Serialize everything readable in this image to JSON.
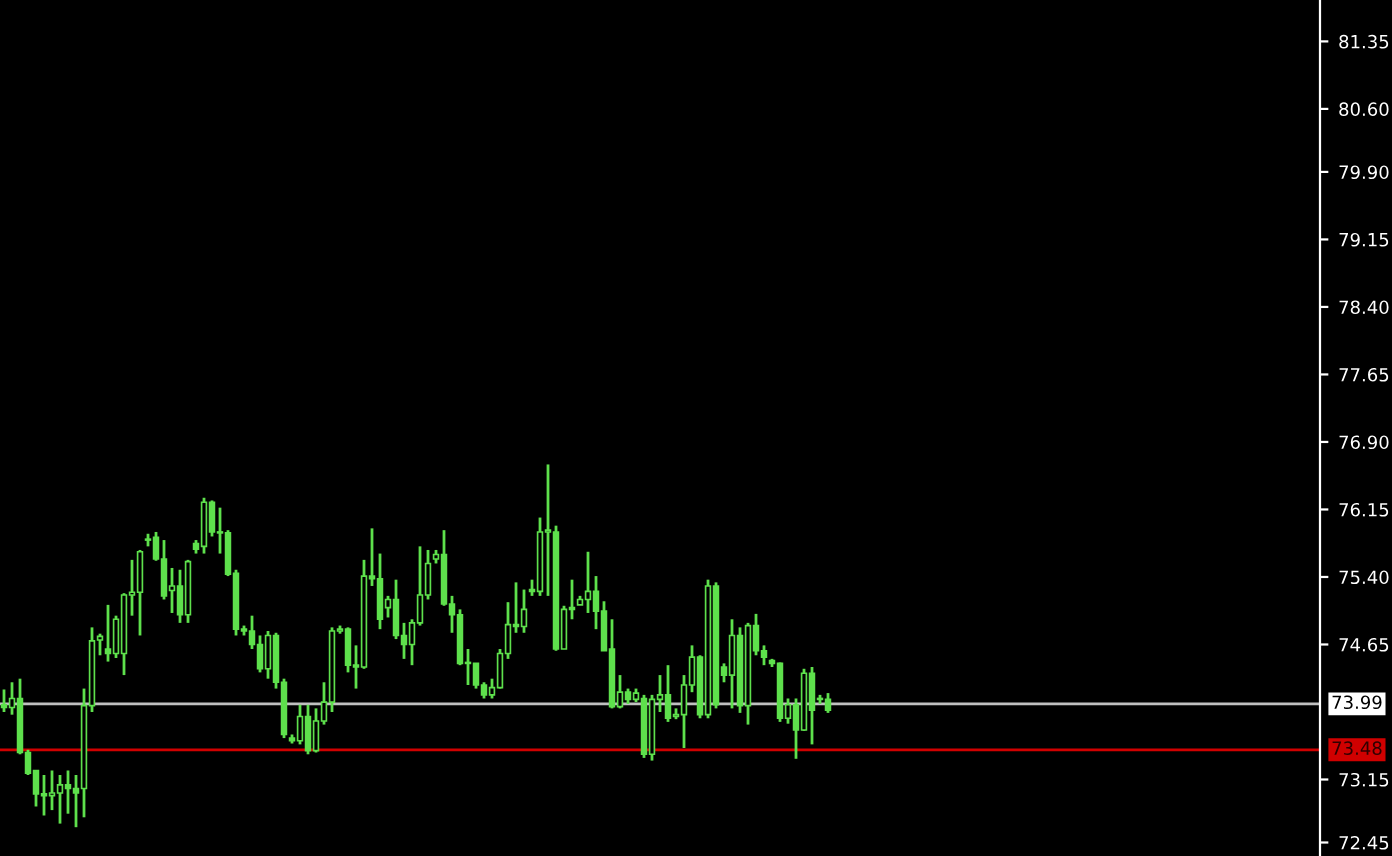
{
  "chart_data": {
    "type": "candlestick",
    "color": "#5ee04c",
    "categories": [
      null,
      null,
      null,
      null,
      null,
      null,
      null,
      null,
      null,
      null,
      null,
      null,
      null,
      null,
      null,
      null,
      null,
      null,
      null,
      null,
      null,
      null,
      null,
      null,
      null,
      null,
      null,
      null,
      null,
      null,
      null,
      null,
      null,
      null,
      null,
      null,
      null,
      null,
      null,
      null,
      null,
      null,
      null,
      null,
      null,
      null,
      null,
      null,
      null,
      null,
      null,
      null,
      null,
      null,
      null,
      null,
      null,
      null,
      null,
      null,
      null,
      null,
      null,
      null,
      null,
      null,
      null,
      null,
      null,
      null,
      null,
      null,
      null,
      null,
      null,
      null,
      null,
      null,
      null,
      null,
      null,
      null,
      null,
      null,
      null,
      null,
      null,
      null,
      null,
      null,
      null,
      null,
      null,
      null,
      null,
      null,
      null,
      null,
      null,
      null,
      null,
      null,
      null,
      null,
      null,
      null,
      null,
      null,
      null,
      null,
      null,
      null,
      null,
      null,
      null,
      null,
      null,
      null,
      null,
      null,
      null,
      null,
      null,
      null,
      null,
      null,
      null,
      null,
      null,
      null,
      null,
      null,
      null,
      null,
      null,
      null,
      null,
      null,
      null,
      null,
      null,
      null,
      null,
      null,
      null,
      null,
      null,
      null,
      null,
      null,
      null,
      null,
      null,
      null,
      null,
      null,
      null,
      null,
      null,
      null,
      null,
      null,
      null,
      null,
      null
    ],
    "ohlc": [
      [
        73.98,
        74.15,
        73.9,
        73.95
      ],
      [
        73.95,
        74.23,
        73.87,
        74.05
      ],
      [
        74.05,
        74.27,
        73.43,
        73.45
      ],
      [
        73.45,
        73.48,
        73.2,
        73.22
      ],
      [
        73.25,
        73.25,
        72.85,
        72.99
      ],
      [
        72.99,
        73.2,
        72.75,
        72.97
      ],
      [
        72.97,
        73.25,
        72.81,
        73.0
      ],
      [
        73.0,
        73.2,
        72.66,
        73.09
      ],
      [
        73.09,
        73.25,
        72.77,
        73.05
      ],
      [
        73.05,
        73.2,
        72.62,
        73.0
      ],
      [
        73.05,
        74.16,
        72.73,
        73.97
      ],
      [
        73.97,
        74.84,
        73.9,
        74.69
      ],
      [
        74.7,
        74.77,
        74.53,
        74.74
      ],
      [
        74.6,
        75.09,
        74.46,
        74.55
      ],
      [
        74.55,
        74.97,
        74.5,
        74.93
      ],
      [
        74.55,
        75.22,
        74.31,
        75.2
      ],
      [
        75.2,
        75.59,
        74.97,
        75.23
      ],
      [
        75.23,
        75.7,
        74.75,
        75.68
      ],
      [
        75.82,
        75.88,
        75.74,
        75.81
      ],
      [
        75.84,
        75.9,
        75.58,
        75.6
      ],
      [
        75.6,
        75.81,
        75.15,
        75.19
      ],
      [
        75.25,
        75.5,
        75.0,
        75.3
      ],
      [
        75.3,
        75.48,
        74.89,
        74.98
      ],
      [
        74.98,
        75.59,
        74.89,
        75.57
      ],
      [
        75.77,
        75.81,
        75.66,
        75.71
      ],
      [
        75.74,
        76.28,
        75.66,
        76.23
      ],
      [
        76.23,
        76.25,
        75.85,
        75.9
      ],
      [
        75.9,
        76.17,
        75.66,
        75.89
      ],
      [
        75.89,
        75.92,
        75.41,
        75.43
      ],
      [
        75.44,
        75.48,
        74.75,
        74.82
      ],
      [
        74.82,
        74.86,
        74.75,
        74.8
      ],
      [
        74.8,
        74.97,
        74.6,
        74.65
      ],
      [
        74.65,
        74.75,
        74.34,
        74.38
      ],
      [
        74.38,
        74.8,
        74.27,
        74.75
      ],
      [
        74.75,
        74.78,
        74.16,
        74.23
      ],
      [
        74.23,
        74.27,
        73.61,
        73.65
      ],
      [
        73.61,
        73.65,
        73.55,
        73.58
      ],
      [
        73.58,
        73.98,
        73.54,
        73.85
      ],
      [
        73.85,
        73.98,
        73.43,
        73.47
      ],
      [
        73.47,
        73.94,
        73.45,
        73.8
      ],
      [
        73.8,
        74.23,
        73.76,
        74.01
      ],
      [
        74.01,
        74.84,
        73.9,
        74.8
      ],
      [
        74.8,
        74.86,
        74.77,
        74.82
      ],
      [
        74.82,
        74.84,
        74.34,
        74.42
      ],
      [
        74.42,
        74.64,
        74.16,
        74.4
      ],
      [
        74.4,
        75.59,
        74.38,
        75.41
      ],
      [
        75.41,
        75.94,
        75.3,
        75.38
      ],
      [
        75.38,
        75.66,
        74.82,
        74.93
      ],
      [
        75.06,
        75.19,
        74.95,
        75.15
      ],
      [
        75.15,
        75.37,
        74.71,
        74.75
      ],
      [
        74.75,
        74.89,
        74.49,
        74.65
      ],
      [
        74.65,
        74.93,
        74.42,
        74.89
      ],
      [
        74.89,
        75.74,
        74.86,
        75.2
      ],
      [
        75.2,
        75.7,
        75.15,
        75.55
      ],
      [
        75.6,
        75.7,
        75.55,
        75.65
      ],
      [
        75.65,
        75.92,
        75.08,
        75.1
      ],
      [
        75.1,
        75.19,
        74.78,
        74.98
      ],
      [
        74.98,
        75.04,
        74.42,
        74.44
      ],
      [
        74.45,
        74.6,
        74.2,
        74.44
      ],
      [
        74.44,
        74.44,
        74.16,
        74.2
      ],
      [
        74.2,
        74.23,
        74.05,
        74.09
      ],
      [
        74.09,
        74.27,
        74.05,
        74.17
      ],
      [
        74.17,
        74.6,
        74.16,
        74.55
      ],
      [
        74.55,
        75.12,
        74.49,
        74.87
      ],
      [
        74.87,
        75.34,
        74.78,
        74.85
      ],
      [
        74.85,
        75.26,
        74.78,
        75.04
      ],
      [
        75.26,
        75.37,
        75.19,
        75.24
      ],
      [
        75.24,
        76.06,
        75.19,
        75.9
      ],
      [
        75.9,
        76.65,
        75.19,
        75.92
      ],
      [
        75.9,
        75.97,
        74.58,
        74.6
      ],
      [
        74.6,
        75.08,
        74.6,
        75.04
      ],
      [
        75.04,
        75.37,
        74.93,
        75.06
      ],
      [
        75.09,
        75.19,
        75.09,
        75.15
      ],
      [
        75.15,
        75.68,
        75.0,
        75.24
      ],
      [
        75.24,
        75.41,
        74.82,
        75.02
      ],
      [
        75.02,
        75.13,
        74.58,
        74.58
      ],
      [
        74.6,
        74.93,
        73.94,
        73.96
      ],
      [
        73.96,
        74.31,
        73.94,
        74.12
      ],
      [
        74.12,
        74.16,
        73.99,
        74.04
      ],
      [
        74.04,
        74.16,
        74.01,
        74.11
      ],
      [
        74.05,
        74.09,
        73.39,
        73.43
      ],
      [
        73.43,
        74.09,
        73.36,
        74.04
      ],
      [
        74.04,
        74.31,
        73.9,
        74.09
      ],
      [
        74.09,
        74.42,
        73.79,
        73.83
      ],
      [
        73.85,
        73.94,
        73.82,
        73.87
      ],
      [
        73.87,
        74.31,
        73.5,
        74.2
      ],
      [
        74.2,
        74.64,
        74.12,
        74.51
      ],
      [
        74.51,
        74.53,
        73.83,
        73.87
      ],
      [
        73.87,
        75.37,
        73.83,
        75.3
      ],
      [
        75.3,
        75.34,
        73.94,
        73.98
      ],
      [
        74.4,
        74.44,
        74.23,
        74.31
      ],
      [
        74.31,
        74.93,
        73.94,
        74.75
      ],
      [
        74.75,
        74.84,
        73.89,
        73.97
      ],
      [
        73.97,
        74.89,
        73.76,
        74.86
      ],
      [
        74.86,
        74.99,
        74.53,
        74.58
      ],
      [
        74.58,
        74.64,
        74.42,
        74.51
      ],
      [
        74.47,
        74.49,
        74.4,
        74.44
      ],
      [
        74.44,
        74.45,
        73.79,
        73.83
      ],
      [
        73.83,
        74.05,
        73.77,
        73.98
      ],
      [
        73.98,
        74.05,
        73.38,
        73.7
      ],
      [
        73.7,
        74.38,
        73.69,
        74.33
      ],
      [
        74.33,
        74.4,
        73.54,
        73.92
      ],
      [
        74.05,
        74.09,
        73.99,
        74.04
      ],
      [
        74.04,
        74.11,
        73.89,
        73.92
      ],
      null,
      null,
      null,
      null,
      null,
      null,
      null,
      null,
      null,
      null,
      null,
      null,
      null,
      null,
      null,
      null,
      null,
      null,
      null,
      null,
      null,
      null,
      null,
      null,
      null,
      null,
      null,
      null,
      null,
      null,
      null,
      null,
      null,
      null,
      null,
      null,
      null,
      null,
      null,
      null,
      null,
      null,
      null,
      null,
      null,
      null,
      null,
      null,
      null,
      null,
      null,
      null,
      null,
      null,
      null,
      null,
      null,
      null,
      null,
      null,
      null
    ],
    "ylim": [
      72.3,
      81.81
    ],
    "yticks": [
      72.45,
      73.15,
      74.65,
      {
        "value": 75.4,
        "label": "75.40"
      },
      76.15,
      {
        "value": 76.9,
        "label": "76.90"
      },
      77.65,
      {
        "value": 78.4,
        "label": "78.40"
      },
      79.15,
      {
        "value": 79.9,
        "label": "79.90"
      },
      {
        "value": 80.6,
        "label": "80.60"
      },
      81.35
    ],
    "tick_labels": "y",
    "grid": false,
    "ref_lines": [
      {
        "axis": "y",
        "value": 73.99,
        "label": "73.99",
        "color": "#c0c0c0"
      },
      {
        "axis": "y",
        "value": 73.48,
        "label": "73.48",
        "color": "#d00000"
      }
    ]
  }
}
